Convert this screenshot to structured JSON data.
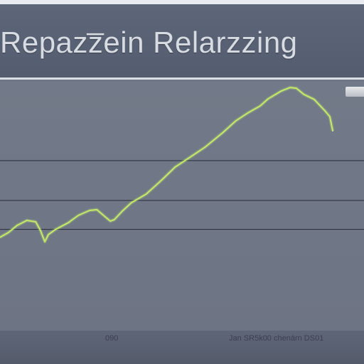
{
  "header": {
    "title": "Repazz̅ein Relarzzing"
  },
  "chart_data": {
    "type": "line",
    "title": "Repazz̅ein Relarzzing",
    "xlabel": "",
    "ylabel": "",
    "xlim": [
      0,
      100
    ],
    "ylim": [
      0,
      100
    ],
    "grid": true,
    "gridlines_y": [
      40.7,
      52.3,
      68.3
    ],
    "x_tick_labels": [
      "090",
      "Jan SR5k00 chenárn DS01"
    ],
    "series": [
      {
        "color": "#c5ea6a",
        "x": [
          0,
          2.3,
          4.7,
          7.4,
          9.8,
          11.1,
          12.3,
          13.3,
          15.2,
          18.8,
          21.5,
          24.6,
          26.6,
          28.9,
          30.3,
          31.4,
          33.6,
          36.1,
          40.2,
          44.5,
          48.1,
          51.6,
          56.3,
          61.3,
          64.8,
          68.0,
          71.5,
          73.6,
          77.3,
          79.7,
          81.4,
          83.5,
          86.3,
          89.1,
          90.6,
          91.4
        ],
        "y": [
          37.5,
          39.4,
          42.3,
          44.3,
          43.7,
          40.3,
          35.7,
          38.6,
          40.6,
          43.4,
          46.3,
          48.3,
          48.6,
          45.7,
          44.0,
          44.6,
          48.0,
          51.4,
          54.9,
          60.6,
          65.7,
          69.1,
          73.7,
          79.7,
          84.3,
          87.4,
          90.3,
          93.1,
          96.3,
          97.7,
          97.4,
          94.9,
          92.9,
          88.6,
          86.0,
          80.3
        ]
      }
    ]
  }
}
